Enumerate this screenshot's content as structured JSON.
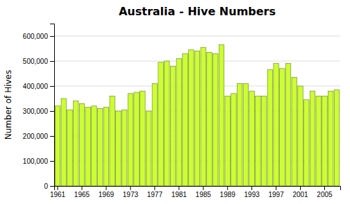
{
  "chart_data": {
    "type": "bar",
    "title": "Australia - Hive Numbers",
    "ylabel": "Number of Hives",
    "categories": [
      "1961",
      null,
      null,
      null,
      "1965",
      null,
      null,
      null,
      "1969",
      null,
      null,
      null,
      "1973",
      null,
      null,
      null,
      "1977",
      null,
      null,
      null,
      "1981",
      null,
      null,
      null,
      "1985",
      null,
      null,
      null,
      "1989",
      null,
      null,
      null,
      "1993",
      null,
      null,
      null,
      "1997",
      null,
      null,
      null,
      "2001",
      null,
      null,
      null,
      "2005",
      null,
      null
    ],
    "values": [
      320000,
      350000,
      305000,
      340000,
      330000,
      315000,
      320000,
      310000,
      315000,
      360000,
      300000,
      305000,
      370000,
      375000,
      380000,
      300000,
      410000,
      495000,
      500000,
      480000,
      510000,
      530000,
      545000,
      540000,
      555000,
      535000,
      530000,
      565000,
      360000,
      370000,
      410000,
      410000,
      380000,
      360000,
      360000,
      465000,
      490000,
      470000,
      490000,
      435000,
      400000,
      345000,
      380000,
      360000,
      360000,
      380000,
      385000
    ],
    "color": "#ccff33",
    "ylim": [
      0,
      650000
    ],
    "yticks": [
      0,
      {
        "value": 100000,
        "label": "100,000"
      },
      {
        "value": 200000,
        "label": "200,000"
      },
      {
        "value": 300000,
        "label": "300,000"
      },
      {
        "value": 400000,
        "label": "400,000"
      },
      {
        "value": 500000,
        "label": "500,000"
      },
      {
        "value": 600000,
        "label": "600,000"
      }
    ],
    "grid": true
  }
}
